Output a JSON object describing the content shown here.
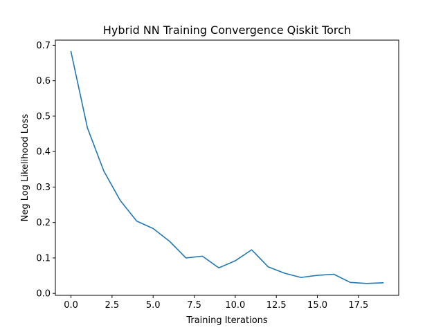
{
  "chart_data": {
    "type": "line",
    "title": "Hybrid NN Training Convergence Qiskit Torch",
    "xlabel": "Training Iterations",
    "ylabel": "Neg Log Likelihood Loss",
    "xlim": [
      -0.95,
      19.95
    ],
    "ylim": [
      -0.0055,
      0.7145
    ],
    "xticks": [
      0,
      2.5,
      5,
      7.5,
      10,
      12.5,
      15,
      17.5
    ],
    "xtick_labels": [
      "0.0",
      "2.5",
      "5.0",
      "7.5",
      "10.0",
      "12.5",
      "15.0",
      "17.5"
    ],
    "yticks": [
      0,
      0.1,
      0.2,
      0.3,
      0.4,
      0.5,
      0.6,
      0.7
    ],
    "ytick_labels": [
      "0.0",
      "0.1",
      "0.2",
      "0.3",
      "0.4",
      "0.5",
      "0.6",
      "0.7"
    ],
    "grid": false,
    "legend": false,
    "series": [
      {
        "color": "#1f77b4",
        "x": [
          0,
          1,
          2,
          3,
          4,
          5,
          6,
          7,
          8,
          9,
          10,
          11,
          12,
          13,
          14,
          15,
          16,
          17,
          18,
          19
        ],
        "y": [
          0.682,
          0.467,
          0.345,
          0.262,
          0.204,
          0.183,
          0.147,
          0.1,
          0.105,
          0.072,
          0.092,
          0.123,
          0.075,
          0.057,
          0.045,
          0.051,
          0.054,
          0.031,
          0.028,
          0.03
        ]
      }
    ]
  }
}
